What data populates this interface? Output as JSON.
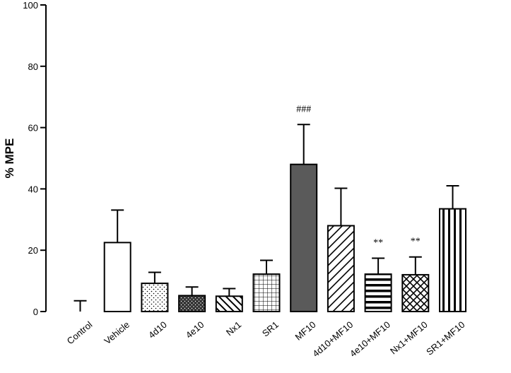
{
  "chart_data": {
    "type": "bar",
    "title": "",
    "xlabel": "",
    "ylabel": "% MPE",
    "ylim": [
      0,
      100
    ],
    "yticks": [
      0,
      20,
      40,
      60,
      80,
      100
    ],
    "grid": false,
    "legend": "none",
    "categories": [
      "Control",
      "Vehicle",
      "4d10",
      "4e10",
      "Nx1",
      "SR1",
      "MF10",
      "4d10+MF10",
      "4e10+MF10",
      "Nx1+MF10",
      "SR1+MF10"
    ],
    "values": [
      0,
      22.5,
      9.2,
      5.2,
      5.0,
      12.2,
      48.0,
      28.0,
      12.2,
      12.0,
      33.5
    ],
    "errors": [
      3.5,
      10.6,
      3.6,
      2.8,
      2.5,
      4.5,
      13.0,
      12.2,
      5.2,
      5.8,
      7.5
    ],
    "patterns": [
      "none",
      "white",
      "dots",
      "dark-dots",
      "diagonal-back",
      "grid",
      "solid-dark",
      "diagonal-forward",
      "horizontal",
      "crosshatch",
      "vertical"
    ],
    "annotations": [
      "",
      "",
      "",
      "",
      "",
      "",
      "###",
      "",
      "**",
      "**",
      ""
    ],
    "colors": {
      "bar_edge": "#000000",
      "solid_fill": "#5a5a5a",
      "axis": "#000000"
    }
  }
}
